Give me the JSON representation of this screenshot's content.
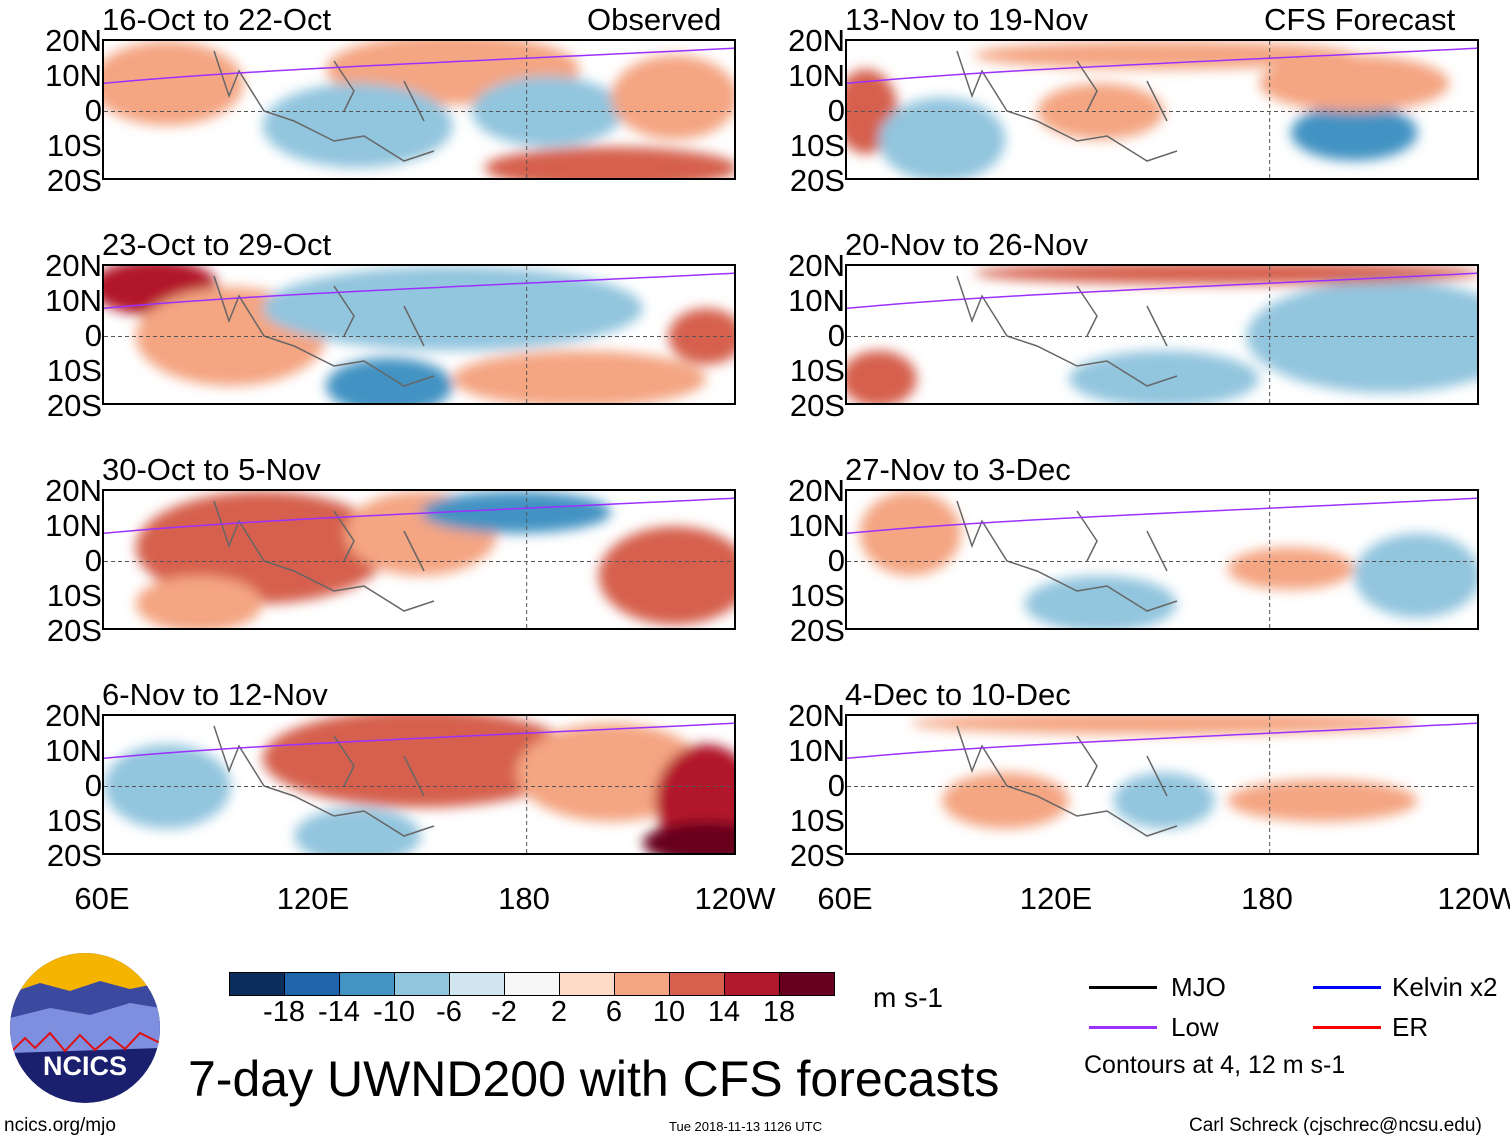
{
  "panels_left_header": "Observed",
  "panels_right_header": "CFS Forecast",
  "panels": [
    {
      "title": "16-Oct to 22-Oct",
      "column": "observed"
    },
    {
      "title": "23-Oct to 29-Oct",
      "column": "observed"
    },
    {
      "title": "30-Oct to 5-Nov",
      "column": "observed"
    },
    {
      "title": "6-Nov to 12-Nov",
      "column": "observed"
    },
    {
      "title": "13-Nov to 19-Nov",
      "column": "forecast"
    },
    {
      "title": "20-Nov to 26-Nov",
      "column": "forecast"
    },
    {
      "title": "27-Nov to 3-Dec",
      "column": "forecast"
    },
    {
      "title": "4-Dec to 10-Dec",
      "column": "forecast"
    }
  ],
  "lat_labels": [
    "20N",
    "10N",
    "0",
    "10S",
    "20S"
  ],
  "lon_labels": [
    "60E",
    "120E",
    "180",
    "120W"
  ],
  "colorbar": {
    "labels": [
      "-18",
      "-14",
      "-10",
      "-6",
      "-2",
      "2",
      "6",
      "10",
      "14",
      "18"
    ],
    "colors": [
      "#0b2d5c",
      "#2166ac",
      "#4393c3",
      "#92c5de",
      "#d1e5f0",
      "#f7f7f7",
      "#fddbc7",
      "#f4a582",
      "#d6604d",
      "#b2182b",
      "#67001f"
    ],
    "units": "m s-1"
  },
  "legend": {
    "items": [
      {
        "label": "MJO",
        "color": "#000000"
      },
      {
        "label": "Kelvin x2",
        "color": "#0000ff"
      },
      {
        "label": "Low",
        "color": "#9b30ff"
      },
      {
        "label": "ER",
        "color": "#ff0000"
      }
    ],
    "contours_note": "Contours at 4, 12 m s-1"
  },
  "title": "7-day UWND200 with CFS forecasts",
  "logo_text": "NCICS",
  "footer": {
    "url": "ncics.org/mjo",
    "timestamp": "Tue 2018-11-13 1126 UTC",
    "credit": "Carl Schreck (cjschrec@ncsu.edu)"
  }
}
